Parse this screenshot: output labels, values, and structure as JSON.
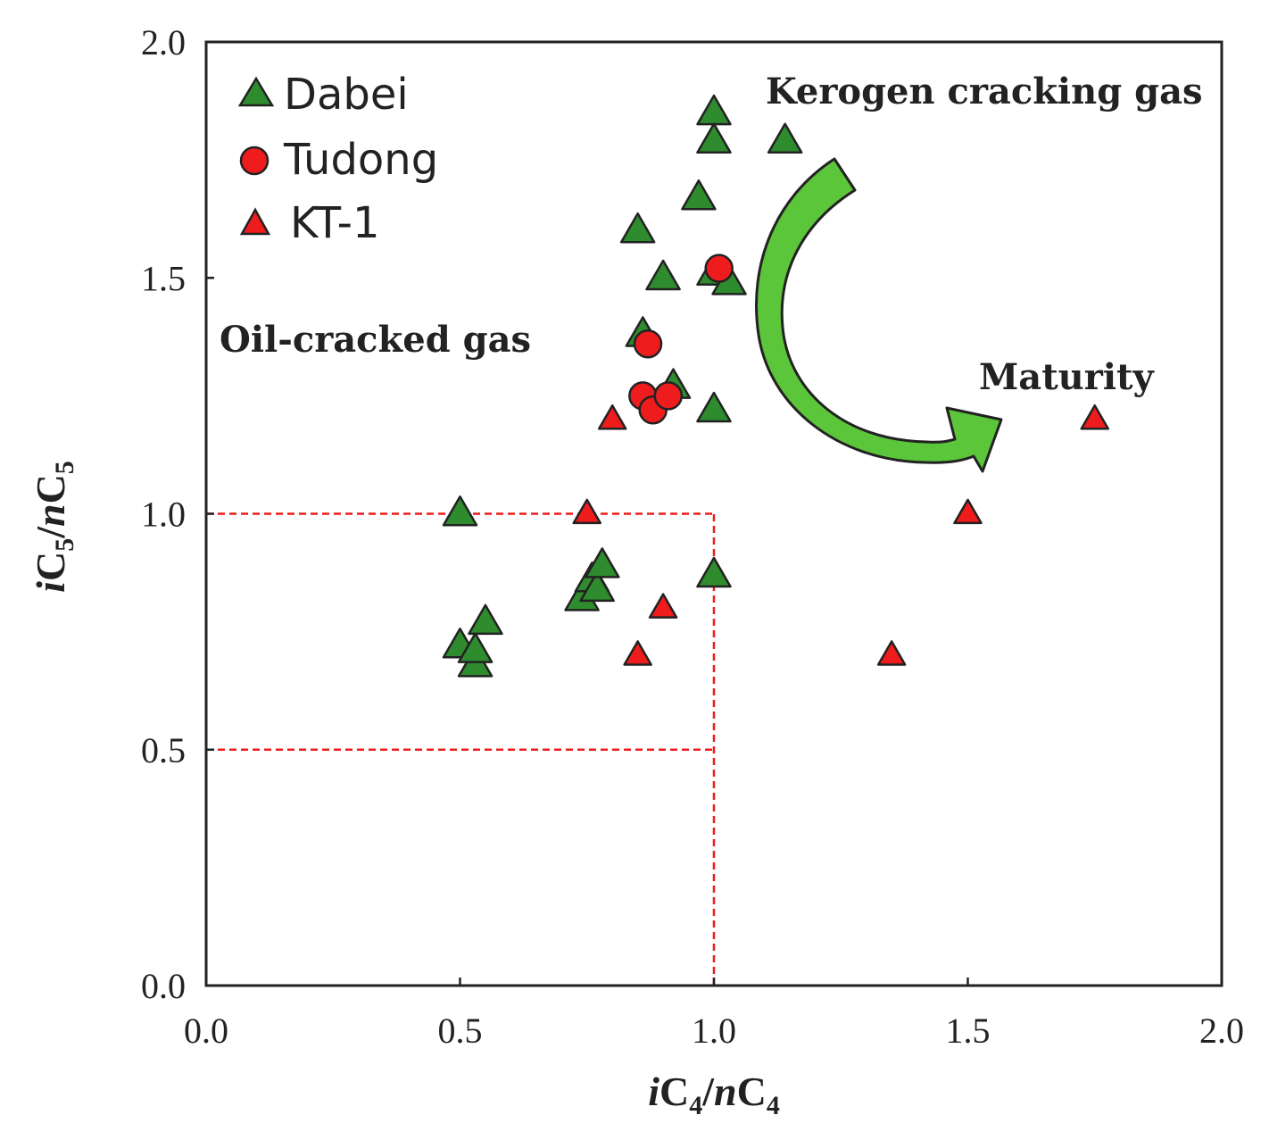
{
  "chart_data": {
    "type": "scatter",
    "x_axis": {
      "label_prefix": "i",
      "label_main": "C",
      "label_sub": "4",
      "label_sep": "/",
      "label_prefix2": "n",
      "label_main2": "C",
      "label_sub2": "4",
      "range": [
        0,
        2
      ],
      "ticks": [
        "0.0",
        "0.5",
        "1.0",
        "1.5",
        "2.0"
      ],
      "tick_values": [
        0,
        0.5,
        1.0,
        1.5,
        2.0
      ]
    },
    "y_axis": {
      "label_prefix": "i",
      "label_main": "C",
      "label_sub": "5",
      "label_sep": "/",
      "label_prefix2": "n",
      "label_main2": "C",
      "label_sub2": "5",
      "range": [
        0,
        2
      ],
      "ticks": [
        "0.0",
        "0.5",
        "1.0",
        "1.5",
        "2.0"
      ],
      "tick_values": [
        0,
        0.5,
        1.0,
        1.5,
        2.0
      ]
    },
    "grid": false,
    "legend_position": "top-left",
    "series": [
      {
        "name": "Dabei",
        "marker": "triangle",
        "color": "#2e8b2e",
        "points": [
          [
            0.5,
            1.0
          ],
          [
            0.5,
            0.72
          ],
          [
            0.53,
            0.68
          ],
          [
            0.53,
            0.71
          ],
          [
            0.55,
            0.77
          ],
          [
            0.74,
            0.82
          ],
          [
            0.76,
            0.86
          ],
          [
            0.77,
            0.84
          ],
          [
            0.78,
            0.89
          ],
          [
            1.0,
            0.87
          ],
          [
            0.85,
            1.6
          ],
          [
            0.86,
            1.38
          ],
          [
            0.9,
            1.5
          ],
          [
            0.92,
            1.27
          ],
          [
            0.97,
            1.67
          ],
          [
            1.0,
            1.51
          ],
          [
            1.03,
            1.49
          ],
          [
            1.0,
            1.85
          ],
          [
            1.0,
            1.79
          ],
          [
            1.14,
            1.79
          ],
          [
            1.0,
            1.22
          ]
        ]
      },
      {
        "name": "Tudong",
        "marker": "circle",
        "color": "#ee1c1c",
        "points": [
          [
            1.01,
            1.52
          ],
          [
            0.87,
            1.36
          ],
          [
            0.86,
            1.25
          ],
          [
            0.88,
            1.22
          ],
          [
            0.91,
            1.25
          ]
        ]
      },
      {
        "name": "KT-1",
        "marker": "triangle-small",
        "color": "#ee1c1c",
        "points": [
          [
            0.8,
            1.2
          ],
          [
            0.75,
            1.0
          ],
          [
            0.9,
            0.8
          ],
          [
            0.85,
            0.7
          ],
          [
            1.35,
            0.7
          ],
          [
            1.5,
            1.0
          ],
          [
            1.75,
            1.2
          ]
        ]
      }
    ],
    "reference_lines": [
      {
        "kind": "horizontal",
        "y": 1.0,
        "x_from": 0,
        "x_to": 1.0,
        "color": "#ee1c1c",
        "style": "dashed"
      },
      {
        "kind": "horizontal",
        "y": 0.5,
        "x_from": 0,
        "x_to": 1.0,
        "color": "#ee1c1c",
        "style": "dashed"
      },
      {
        "kind": "vertical",
        "x": 1.0,
        "y_from": 0,
        "y_to": 1.0,
        "color": "#ee1c1c",
        "style": "dashed"
      }
    ],
    "annotations": {
      "kerogen": "Kerogen cracking gas",
      "oil": "Oil-cracked gas",
      "maturity": "Maturity"
    },
    "arrow_color": "#5cc63a"
  }
}
